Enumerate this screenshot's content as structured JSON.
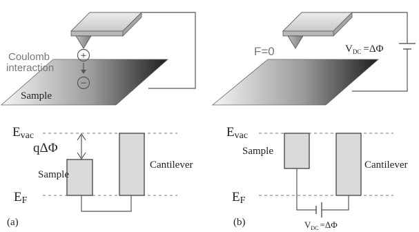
{
  "panel_a": {
    "coulomb_line1": "Coulomb",
    "coulomb_line2": "interaction",
    "sample_label": "Sample",
    "plus_sign": "+",
    "minus_sign": "−",
    "evac_main": "E",
    "evac_sub": "vac",
    "qdphi": "qΔΦ",
    "sample_bar_label": "Sample",
    "cantilever_label": "Cantilever",
    "ef_main": "E",
    "ef_sub": "F",
    "panel_tag": "(a)"
  },
  "panel_b": {
    "force_label": "F=0",
    "vdc_main": "V",
    "vdc_sub": "DC",
    "vdc_rhs": "=ΔΦ",
    "evac_main": "E",
    "evac_sub": "vac",
    "sample_bar_label": "Sample",
    "cantilever_label": "Cantilever",
    "ef_main": "E",
    "ef_sub": "F",
    "vdc2_main": "V",
    "vdc2_sub": "DC",
    "vdc2_rhs": "=ΔΦ",
    "panel_tag": "(b)"
  },
  "colors": {
    "cantilever_fill": "#d4d4d4",
    "bar_fill": "#d9d9d9",
    "sample_gradient_start": "#f2f2f2",
    "sample_gradient_end": "#222222"
  }
}
